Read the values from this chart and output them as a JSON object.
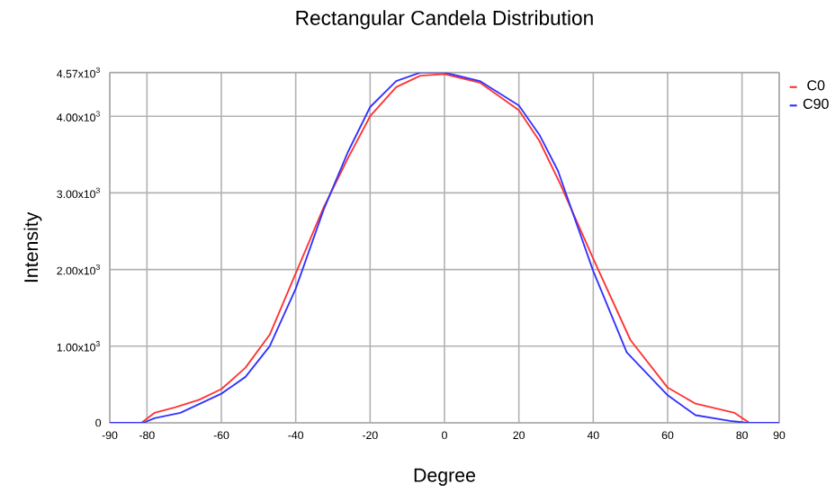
{
  "chart_data": {
    "type": "line",
    "title": "Rectangular Candela Distribution",
    "xlabel": "Degree",
    "ylabel": "Intensity",
    "xlim": [
      -90,
      90
    ],
    "xticks": [
      -90,
      -80,
      -60,
      -40,
      -20,
      0,
      20,
      40,
      60,
      80,
      90
    ],
    "ylim": [
      0,
      4570
    ],
    "yticks": [
      0,
      {
        "value": 1000,
        "label": "1.00x10$^{3}$"
      },
      {
        "value": 2000,
        "label": "2.00x10$^{3}$"
      },
      {
        "value": 3000,
        "label": "3.00x10$^{3}$"
      },
      {
        "value": 4000,
        "label": "4.00x10$^{3}$"
      },
      {
        "value": 4570,
        "label": "4.57x10$^{3}$"
      }
    ],
    "grid": true,
    "legend": "top right",
    "marker": "none",
    "line_style": "solid",
    "series": [
      {
        "name": "C0",
        "color": "#ff3333",
        "x": [
          -90,
          -81.5,
          -78,
          -72.5,
          -66,
          -60,
          -53.5,
          -47,
          -40,
          -32.5,
          -26,
          -20,
          -13,
          -6.5,
          0,
          9.5,
          20,
          25.5,
          31,
          40,
          50,
          60,
          67.5,
          78,
          82,
          90
        ],
        "values": [
          0,
          0,
          130,
          200,
          300,
          440,
          720,
          1150,
          1950,
          2810,
          3450,
          4000,
          4380,
          4530,
          4550,
          4440,
          4080,
          3680,
          3130,
          2140,
          1080,
          460,
          250,
          130,
          0,
          0
        ]
      },
      {
        "name": "C90",
        "color": "#3333ff",
        "x": [
          -90,
          -81,
          -78,
          -71,
          -60,
          -53.5,
          -47,
          -40,
          -32.5,
          -26,
          -20,
          -13,
          -6.5,
          0,
          9.5,
          20,
          25.5,
          30.5,
          40,
          49,
          60,
          67.5,
          77.5,
          81.5,
          90
        ],
        "values": [
          0,
          0,
          60,
          130,
          380,
          600,
          1000,
          1750,
          2780,
          3530,
          4120,
          4460,
          4570,
          4570,
          4460,
          4140,
          3760,
          3290,
          1980,
          920,
          360,
          100,
          20,
          0,
          0
        ]
      }
    ]
  }
}
